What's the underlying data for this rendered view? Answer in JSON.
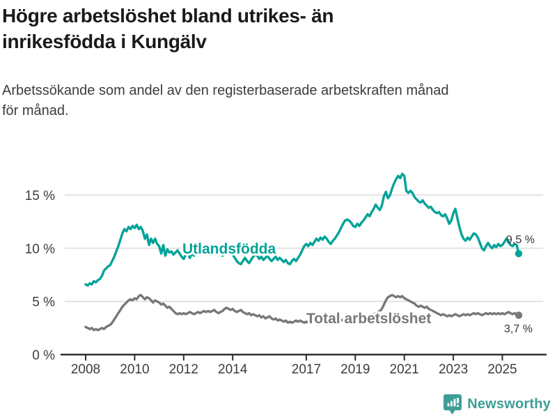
{
  "header": {
    "title_lines": [
      "Högre arbetslöshet bland utrikes- än",
      "inrikesfödda i Kungälv"
    ],
    "subtitle_lines": [
      "Arbetssökande som andel av den registerbaserade arbetskraften månad",
      "för månad."
    ]
  },
  "colors": {
    "foreign_series": "#00a398",
    "total_series": "#787878",
    "grid": "#dcdcdc",
    "axis": "#2e2e2e",
    "tick_text": "#3c3c3c",
    "annotation_text": "#333333",
    "logo": "#3d9e96"
  },
  "chart_data": {
    "type": "line",
    "frequency": "monthly",
    "start": "2008-01",
    "end": "2025-09",
    "grid": "horizontal-only",
    "ylim": [
      0,
      17.5
    ],
    "y_ticks": [
      {
        "label": "15 %",
        "value": 15
      },
      {
        "label": "10 %",
        "value": 10
      },
      {
        "label": "5 %",
        "value": 5
      },
      {
        "label": "0 %",
        "value": 0
      }
    ],
    "x_tick_labels": [
      "2008",
      "2010",
      "2012",
      "2014",
      "2017",
      "2019",
      "2021",
      "2023",
      "2025"
    ],
    "series": [
      {
        "name": "Total arbetslöshet",
        "color": "#787878",
        "last_value_label": "3,7 %",
        "values": [
          2.6,
          2.5,
          2.4,
          2.5,
          2.3,
          2.4,
          2.3,
          2.4,
          2.5,
          2.4,
          2.6,
          2.7,
          2.8,
          3.0,
          3.3,
          3.6,
          3.9,
          4.2,
          4.5,
          4.7,
          4.9,
          5.1,
          5.2,
          5.1,
          5.3,
          5.2,
          5.5,
          5.6,
          5.4,
          5.2,
          5.4,
          5.3,
          5.1,
          4.9,
          5.1,
          5.0,
          4.9,
          4.7,
          4.8,
          4.6,
          4.4,
          4.5,
          4.3,
          4.1,
          3.9,
          3.8,
          3.9,
          3.8,
          3.9,
          3.8,
          3.9,
          4.0,
          3.9,
          3.8,
          3.9,
          4.0,
          3.9,
          4.0,
          4.1,
          4.0,
          4.1,
          4.0,
          4.1,
          4.2,
          4.0,
          3.9,
          4.0,
          4.1,
          4.3,
          4.4,
          4.3,
          4.2,
          4.3,
          4.1,
          4.0,
          4.1,
          4.2,
          4.0,
          3.9,
          3.8,
          3.9,
          3.7,
          3.8,
          3.7,
          3.6,
          3.7,
          3.5,
          3.6,
          3.4,
          3.5,
          3.6,
          3.4,
          3.3,
          3.4,
          3.2,
          3.3,
          3.2,
          3.1,
          3.2,
          3.0,
          3.1,
          3.0,
          3.1,
          3.2,
          3.1,
          3.2,
          3.1,
          3.0,
          3.1,
          3.0,
          3.1,
          3.2,
          3.1,
          3.2,
          3.3,
          3.2,
          3.1,
          3.2,
          3.3,
          3.2,
          3.3,
          3.2,
          3.3,
          3.2,
          3.1,
          3.2,
          3.3,
          3.4,
          3.3,
          3.4,
          3.3,
          3.4,
          3.3,
          3.4,
          3.5,
          3.4,
          3.5,
          3.6,
          3.5,
          3.6,
          3.7,
          3.8,
          3.9,
          4.0,
          4.1,
          4.3,
          4.7,
          5.1,
          5.4,
          5.5,
          5.6,
          5.5,
          5.4,
          5.5,
          5.4,
          5.5,
          5.3,
          5.2,
          5.1,
          5.0,
          4.9,
          4.8,
          4.6,
          4.5,
          4.6,
          4.5,
          4.4,
          4.5,
          4.3,
          4.2,
          4.1,
          4.0,
          3.9,
          3.8,
          3.7,
          3.8,
          3.7,
          3.6,
          3.7,
          3.6,
          3.7,
          3.8,
          3.7,
          3.6,
          3.7,
          3.8,
          3.7,
          3.8,
          3.7,
          3.8,
          3.9,
          3.8,
          3.9,
          3.8,
          3.7,
          3.8,
          3.9,
          3.8,
          3.9,
          3.8,
          3.9,
          3.8,
          3.9,
          3.8,
          3.9,
          3.8,
          3.9,
          4.0,
          3.9,
          3.8,
          3.9,
          3.8,
          3.7
        ]
      },
      {
        "name": "Utlandsfödda",
        "color": "#00a398",
        "last_value_label": "9,5 %",
        "values": [
          6.6,
          6.5,
          6.7,
          6.6,
          6.9,
          6.8,
          7.0,
          7.1,
          7.4,
          7.9,
          8.1,
          8.3,
          8.4,
          8.8,
          9.2,
          9.7,
          10.2,
          10.8,
          11.4,
          11.8,
          11.6,
          12.0,
          11.8,
          12.1,
          11.9,
          12.2,
          11.8,
          12.0,
          11.6,
          10.9,
          11.3,
          10.3,
          10.9,
          10.5,
          10.9,
          10.4,
          10.2,
          9.5,
          10.3,
          9.3,
          9.9,
          9.6,
          9.7,
          9.4,
          9.6,
          9.8,
          9.5,
          9.2,
          9.0,
          9.4,
          9.6,
          9.1,
          9.5,
          9.3,
          9.6,
          9.4,
          9.7,
          9.5,
          9.8,
          9.6,
          9.4,
          9.7,
          9.9,
          9.5,
          9.7,
          9.4,
          9.6,
          9.3,
          9.5,
          9.7,
          9.4,
          9.6,
          9.4,
          9.1,
          8.8,
          8.6,
          8.5,
          8.8,
          9.1,
          8.8,
          8.6,
          8.9,
          9.2,
          9.4,
          9.3,
          9.0,
          9.2,
          8.9,
          9.1,
          9.3,
          9.0,
          8.8,
          9.0,
          9.2,
          8.9,
          9.1,
          8.9,
          8.7,
          8.9,
          8.6,
          8.5,
          8.8,
          9.0,
          8.8,
          9.1,
          9.4,
          9.8,
          10.2,
          10.4,
          10.2,
          10.5,
          10.3,
          10.6,
          10.9,
          10.7,
          11.0,
          10.8,
          11.1,
          10.9,
          10.6,
          10.4,
          10.7,
          10.9,
          11.2,
          11.5,
          11.9,
          12.3,
          12.6,
          12.7,
          12.6,
          12.4,
          12.1,
          12.0,
          12.3,
          12.1,
          12.4,
          12.6,
          12.9,
          13.2,
          13.0,
          13.4,
          13.7,
          14.1,
          13.8,
          13.6,
          14.0,
          14.9,
          15.3,
          14.7,
          15.0,
          15.6,
          16.1,
          16.5,
          16.8,
          16.6,
          17.0,
          16.8,
          15.4,
          15.2,
          15.4,
          15.2,
          14.8,
          14.6,
          14.4,
          14.3,
          14.5,
          14.2,
          14.0,
          13.8,
          13.9,
          13.6,
          13.4,
          13.3,
          13.4,
          13.1,
          13.0,
          13.2,
          12.8,
          12.3,
          12.6,
          13.3,
          13.7,
          12.8,
          12.0,
          11.3,
          10.9,
          10.7,
          11.0,
          10.8,
          11.1,
          11.4,
          11.3,
          11.0,
          10.5,
          10.0,
          9.8,
          10.2,
          10.5,
          10.2,
          10.0,
          10.3,
          10.1,
          10.4,
          10.2,
          10.3,
          10.6,
          10.9,
          10.6,
          10.3,
          10.2,
          10.4,
          10.3,
          9.5
        ]
      }
    ]
  },
  "footer": {
    "brand": "Newsworthy"
  }
}
